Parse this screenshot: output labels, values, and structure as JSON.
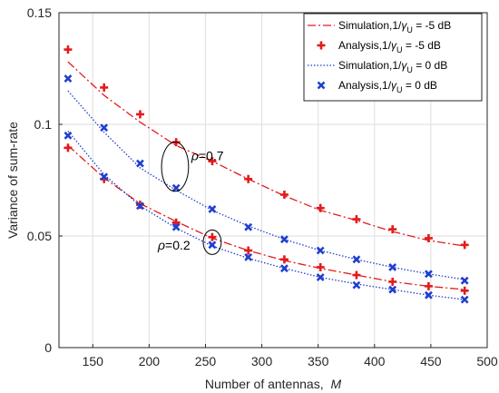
{
  "chart_data": {
    "type": "line",
    "xlabel_text": "Number of antennas,",
    "xlabel_var": "M",
    "ylabel": "Variance of sum-rate",
    "xlim": [
      120,
      500
    ],
    "ylim": [
      0,
      0.15
    ],
    "xticks": [
      150,
      200,
      250,
      300,
      350,
      400,
      450,
      500
    ],
    "yticks": [
      0,
      0.05,
      0.1,
      0.15
    ],
    "yticklabels": [
      "0",
      "0.05",
      "0.1",
      "0.15"
    ],
    "grid": true,
    "legend_position": "top-right",
    "legend": [
      {
        "prefix": "Simulation,1/",
        "greek": "γ",
        "sub": "U",
        "suffix": " = -5 dB",
        "color": "#e31a1c",
        "style": "dashdot"
      },
      {
        "prefix": "Analysis,1/",
        "greek": "γ",
        "sub": "U",
        "suffix": " = -5 dB",
        "color": "#e31a1c",
        "style": "plus"
      },
      {
        "prefix": "Simulation,1/",
        "greek": "γ",
        "sub": "U",
        "suffix": " = 0 dB",
        "color": "#1f3fd1",
        "style": "dotted"
      },
      {
        "prefix": "Analysis,1/",
        "greek": "γ",
        "sub": "U",
        "suffix": " = 0 dB",
        "color": "#1f3fd1",
        "style": "cross"
      }
    ],
    "annotations": [
      {
        "greek": "ρ",
        "text": "=0.7",
        "cx": 223,
        "cy": 0.081,
        "rx": 12,
        "ry": 0.011
      },
      {
        "greek": "ρ",
        "text": "=0.2",
        "cx": 256,
        "cy": 0.0472,
        "rx": 8,
        "ry": 0.0055
      }
    ],
    "x": [
      128,
      160,
      192,
      224,
      256,
      288,
      320,
      352,
      384,
      416,
      448,
      480
    ],
    "series": [
      {
        "group": "sim_-5dB_rho0.7",
        "color": "#e31a1c",
        "style": "dashdot",
        "values": [
          0.128,
          0.113,
          0.101,
          0.0905,
          0.0835,
          0.0755,
          0.068,
          0.0615,
          0.057,
          0.052,
          0.048,
          0.0455
        ]
      },
      {
        "group": "ana_-5dB_rho0.7",
        "color": "#e31a1c",
        "style": "plus",
        "values": [
          0.1335,
          0.1165,
          0.1045,
          0.092,
          0.0835,
          0.0755,
          0.0685,
          0.0625,
          0.0575,
          0.053,
          0.049,
          0.046
        ]
      },
      {
        "group": "sim_0dB_rho0.7",
        "color": "#1f3fd1",
        "style": "dotted",
        "values": [
          0.115,
          0.0965,
          0.0805,
          0.0705,
          0.0615,
          0.0545,
          0.0485,
          0.0435,
          0.0395,
          0.036,
          0.033,
          0.0305
        ]
      },
      {
        "group": "ana_0dB_rho0.7",
        "color": "#1f3fd1",
        "style": "cross",
        "values": [
          0.1205,
          0.0985,
          0.0825,
          0.0715,
          0.062,
          0.054,
          0.0485,
          0.0435,
          0.0395,
          0.036,
          0.033,
          0.03
        ]
      },
      {
        "group": "sim_-5dB_rho0.2",
        "color": "#e31a1c",
        "style": "dashdot",
        "values": [
          0.0905,
          0.076,
          0.0645,
          0.0565,
          0.049,
          0.0435,
          0.039,
          0.0355,
          0.0325,
          0.0295,
          0.0275,
          0.026
        ]
      },
      {
        "group": "ana_-5dB_rho0.2",
        "color": "#e31a1c",
        "style": "plus",
        "values": [
          0.0895,
          0.0755,
          0.064,
          0.056,
          0.0495,
          0.0435,
          0.0395,
          0.036,
          0.0325,
          0.0295,
          0.0275,
          0.0255
        ]
      },
      {
        "group": "sim_0dB_rho0.2",
        "color": "#1f3fd1",
        "style": "dotted",
        "values": [
          0.097,
          0.0775,
          0.0635,
          0.0535,
          0.0455,
          0.04,
          0.0355,
          0.0315,
          0.0285,
          0.026,
          0.0235,
          0.0215
        ]
      },
      {
        "group": "ana_0dB_rho0.2",
        "color": "#1f3fd1",
        "style": "cross",
        "values": [
          0.095,
          0.0765,
          0.0635,
          0.054,
          0.046,
          0.0405,
          0.0355,
          0.0315,
          0.028,
          0.026,
          0.0235,
          0.0215
        ]
      }
    ]
  }
}
